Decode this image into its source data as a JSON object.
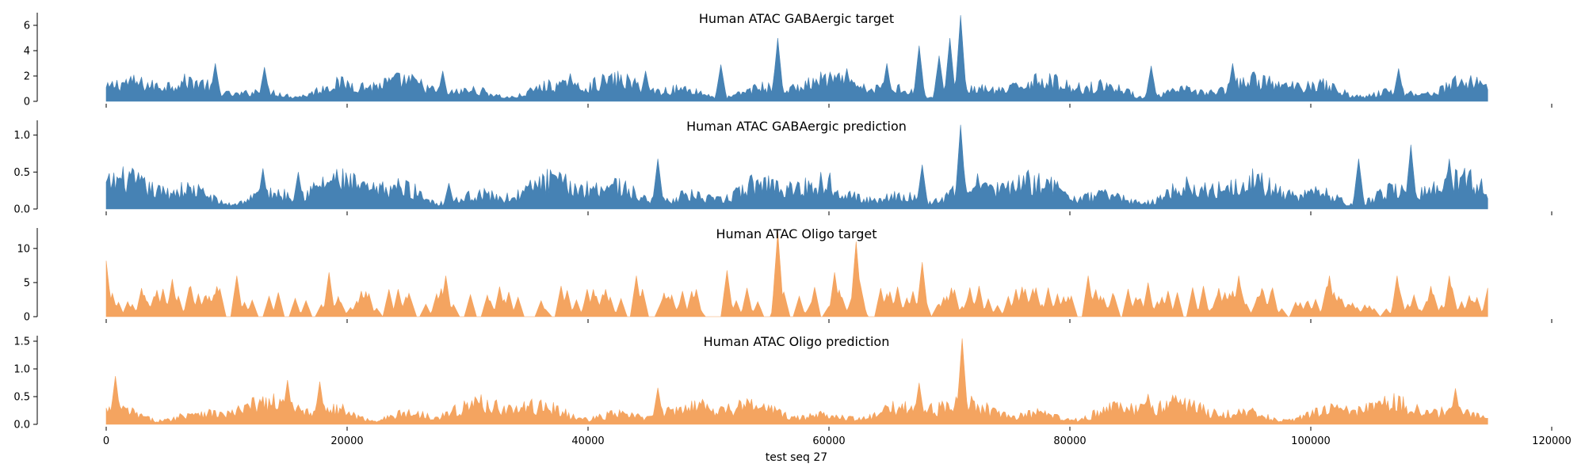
{
  "chart_data": [
    {
      "type": "area",
      "title": "Human ATAC GABAergic target",
      "color": "#4682b4",
      "x_range": [
        0,
        114688
      ],
      "ylim": [
        0,
        7
      ],
      "yticks": [
        0,
        2,
        4,
        6
      ],
      "ytick_labels": [
        "0",
        "2",
        "4",
        "6"
      ],
      "base_level": 1.3,
      "variation": 0.6,
      "features": [
        {
          "x": 9000,
          "y": 3.0
        },
        {
          "x": 13200,
          "y": 2.7
        },
        {
          "x": 28000,
          "y": 2.4
        },
        {
          "x": 38500,
          "y": 2.2
        },
        {
          "x": 44800,
          "y": 2.4
        },
        {
          "x": 51000,
          "y": 2.9
        },
        {
          "x": 55800,
          "y": 5.0
        },
        {
          "x": 61500,
          "y": 2.6
        },
        {
          "x": 64800,
          "y": 3.0
        },
        {
          "x": 67500,
          "y": 4.4
        },
        {
          "x": 69200,
          "y": 3.6
        },
        {
          "x": 70000,
          "y": 5.0
        },
        {
          "x": 70900,
          "y": 6.8
        },
        {
          "x": 86800,
          "y": 2.8
        },
        {
          "x": 93500,
          "y": 3.0
        },
        {
          "x": 107300,
          "y": 2.6
        }
      ]
    },
    {
      "type": "area",
      "title": "Human ATAC GABAergic prediction",
      "color": "#4682b4",
      "x_range": [
        0,
        114688
      ],
      "ylim": [
        0,
        1.2
      ],
      "yticks": [
        0,
        0.5,
        1.0
      ],
      "ytick_labels": [
        "0.0",
        "0.5",
        "1.0"
      ],
      "base_level": 0.3,
      "variation": 0.15,
      "features": [
        {
          "x": 13000,
          "y": 0.55
        },
        {
          "x": 16000,
          "y": 0.5
        },
        {
          "x": 28500,
          "y": 0.35
        },
        {
          "x": 45800,
          "y": 0.68
        },
        {
          "x": 67800,
          "y": 0.6
        },
        {
          "x": 70900,
          "y": 1.14
        },
        {
          "x": 104000,
          "y": 0.68
        },
        {
          "x": 108300,
          "y": 0.87
        },
        {
          "x": 111500,
          "y": 0.68
        }
      ]
    },
    {
      "type": "area",
      "title": "Human ATAC Oligo target",
      "color": "#f4a460",
      "x_range": [
        0,
        114688
      ],
      "ylim": [
        0,
        13
      ],
      "yticks": [
        0,
        5,
        10
      ],
      "ytick_labels": [
        "0",
        "5",
        "10"
      ],
      "base_level": 0,
      "variation": 0,
      "features": [
        {
          "x": 0,
          "y": 8.2
        },
        {
          "x": 1800,
          "y": 2.2
        },
        {
          "x": 2200,
          "y": 1.8
        },
        {
          "x": 5500,
          "y": 5.5
        },
        {
          "x": 8500,
          "y": 3.0
        },
        {
          "x": 10800,
          "y": 6.0
        },
        {
          "x": 13500,
          "y": 3.0
        },
        {
          "x": 18500,
          "y": 6.5
        },
        {
          "x": 23500,
          "y": 4.0
        },
        {
          "x": 28200,
          "y": 6.0
        },
        {
          "x": 37800,
          "y": 4.5
        },
        {
          "x": 44000,
          "y": 6.0
        },
        {
          "x": 49000,
          "y": 4.0
        },
        {
          "x": 51500,
          "y": 6.8
        },
        {
          "x": 55800,
          "y": 12.5
        },
        {
          "x": 60500,
          "y": 6.5
        },
        {
          "x": 62300,
          "y": 11.0
        },
        {
          "x": 67800,
          "y": 8.0
        },
        {
          "x": 72500,
          "y": 4.5
        },
        {
          "x": 81500,
          "y": 6.0
        },
        {
          "x": 86500,
          "y": 5.0
        },
        {
          "x": 94000,
          "y": 6.0
        },
        {
          "x": 101500,
          "y": 6.0
        },
        {
          "x": 107200,
          "y": 6.0
        },
        {
          "x": 111500,
          "y": 6.0
        }
      ]
    },
    {
      "type": "area",
      "title": "Human ATAC Oligo prediction",
      "color": "#f4a460",
      "x_range": [
        0,
        114688
      ],
      "ylim": [
        0,
        1.6
      ],
      "yticks": [
        0,
        0.5,
        1.0,
        1.5
      ],
      "ytick_labels": [
        "0.0",
        "0.5",
        "1.0",
        "1.5"
      ],
      "base_level": 0.3,
      "variation": 0.15,
      "features": [
        {
          "x": 800,
          "y": 0.87
        },
        {
          "x": 15000,
          "y": 0.8
        },
        {
          "x": 17700,
          "y": 0.77
        },
        {
          "x": 45800,
          "y": 0.66
        },
        {
          "x": 67500,
          "y": 0.75
        },
        {
          "x": 71000,
          "y": 1.55
        },
        {
          "x": 86500,
          "y": 0.55
        },
        {
          "x": 112000,
          "y": 0.65
        }
      ]
    }
  ],
  "shared_x_axis": {
    "label": "test seq 27",
    "xlim": [
      0,
      120000
    ],
    "ticks": [
      0,
      20000,
      40000,
      60000,
      80000,
      100000,
      120000
    ],
    "tick_labels": [
      "0",
      "20000",
      "40000",
      "60000",
      "80000",
      "100000",
      "120000"
    ]
  }
}
